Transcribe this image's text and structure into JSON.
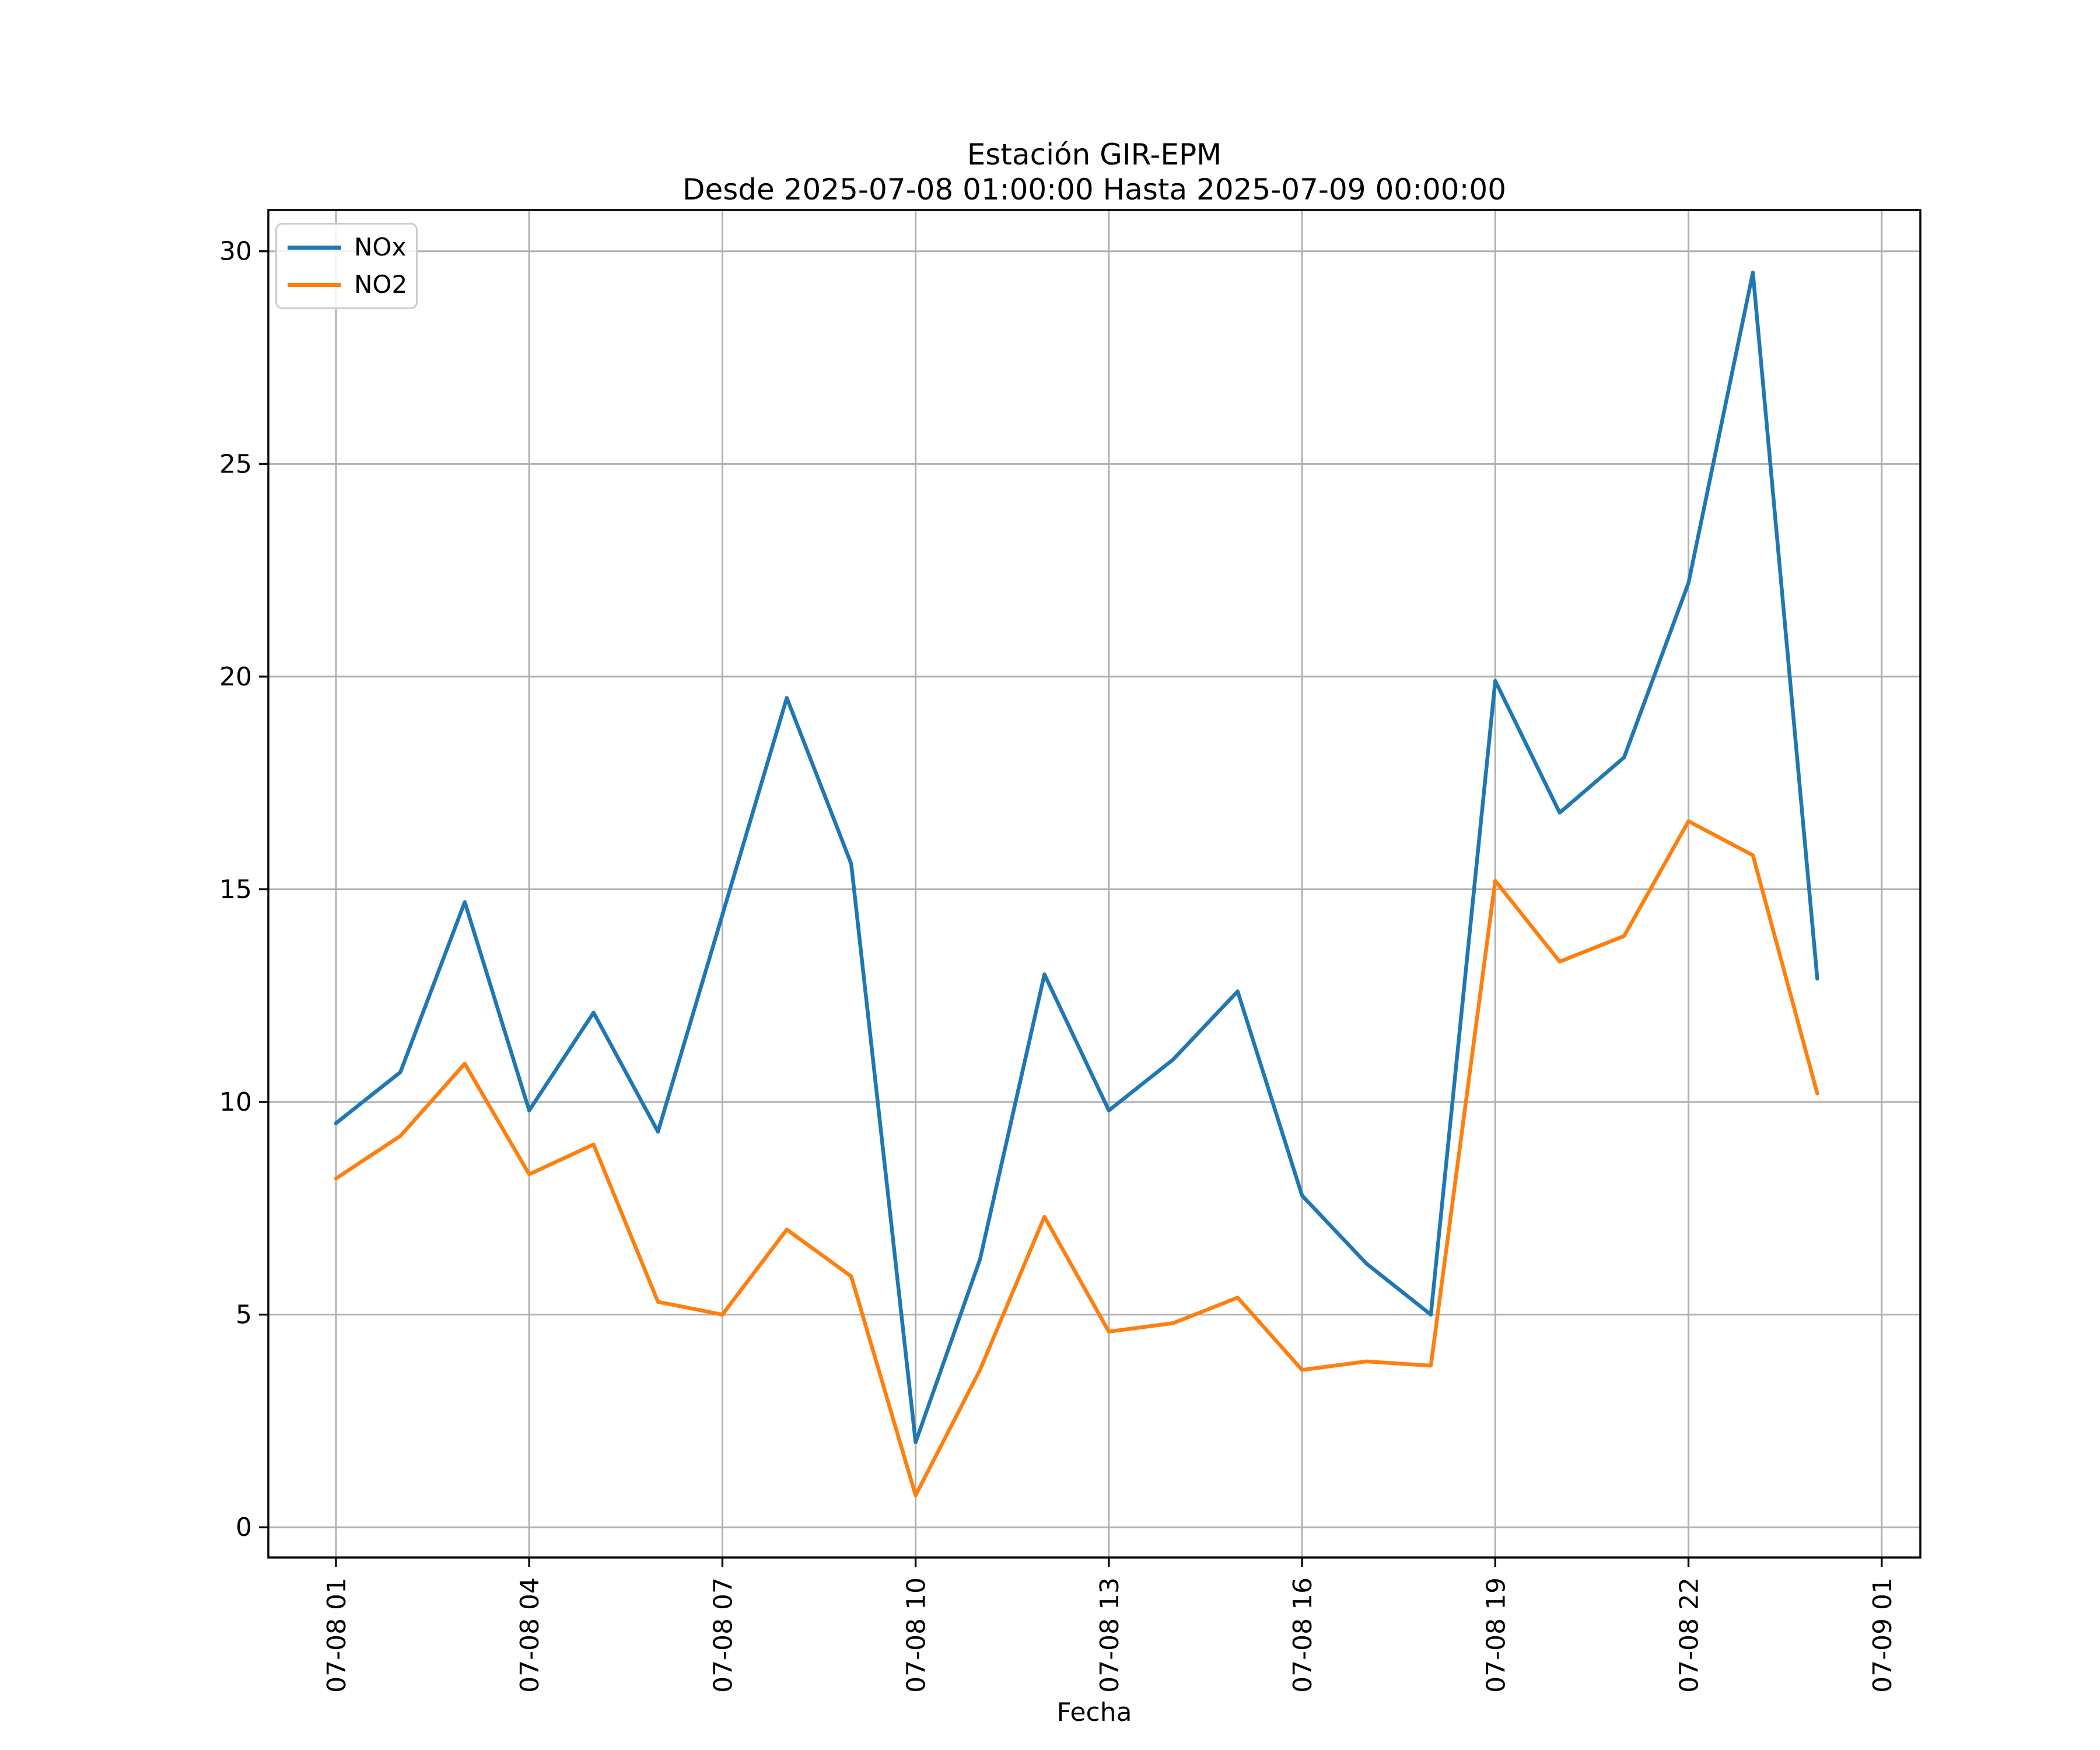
{
  "title": "Estación GIR-EPM",
  "subtitle": "Desde 2025-07-08 01:00:00 Hasta 2025-07-09 00:00:00",
  "chart_data": {
    "type": "line",
    "title": "Estación GIR-EPM",
    "subtitle": "Desde 2025-07-08 01:00:00 Hasta 2025-07-09 00:00:00",
    "xlabel": "Fecha",
    "ylabel": "",
    "grid": true,
    "legend_position": "upper left",
    "x_hours": [
      1,
      2,
      3,
      4,
      5,
      6,
      7,
      8,
      9,
      10,
      11,
      12,
      13,
      14,
      15,
      16,
      17,
      18,
      19,
      20,
      21,
      22,
      23,
      24
    ],
    "x_hour_times": [
      "01:00",
      "02:00",
      "03:00",
      "04:00",
      "05:00",
      "06:00",
      "07:00",
      "08:00",
      "09:00",
      "10:00",
      "11:00",
      "12:00",
      "13:00",
      "14:00",
      "15:00",
      "16:00",
      "17:00",
      "18:00",
      "19:00",
      "20:00",
      "21:00",
      "22:00",
      "23:00",
      "00:00"
    ],
    "x_tick_hours": [
      1,
      4,
      7,
      10,
      13,
      16,
      19,
      22,
      25
    ],
    "x_tick_labels": [
      "07-08 01",
      "07-08 04",
      "07-08 07",
      "07-08 10",
      "07-08 13",
      "07-08 16",
      "07-08 19",
      "07-08 22",
      "07-09 01"
    ],
    "y_ticks": [
      0,
      5,
      10,
      15,
      20,
      25,
      30
    ],
    "xlim": [
      -0.05,
      25.6
    ],
    "ylim": [
      -0.71,
      30.97
    ],
    "series": [
      {
        "name": "NOx",
        "color": "#1f77b4",
        "values": [
          9.5,
          10.7,
          14.7,
          9.8,
          12.1,
          9.3,
          14.4,
          19.5,
          15.6,
          2.0,
          6.3,
          13.0,
          9.8,
          11.0,
          12.6,
          7.8,
          6.2,
          5.0,
          19.9,
          16.8,
          18.1,
          22.2,
          29.5,
          12.9
        ]
      },
      {
        "name": "NO2",
        "color": "#ff7f0e",
        "values": [
          8.2,
          9.2,
          10.9,
          8.3,
          9.0,
          5.3,
          5.0,
          7.0,
          5.9,
          0.75,
          3.7,
          7.3,
          4.6,
          4.8,
          5.4,
          3.7,
          3.9,
          3.8,
          15.2,
          13.3,
          13.9,
          16.6,
          15.8,
          10.2
        ]
      }
    ],
    "grid_color": "#b0b0b0",
    "axis_color": "#000000",
    "background_color": "#ffffff"
  }
}
